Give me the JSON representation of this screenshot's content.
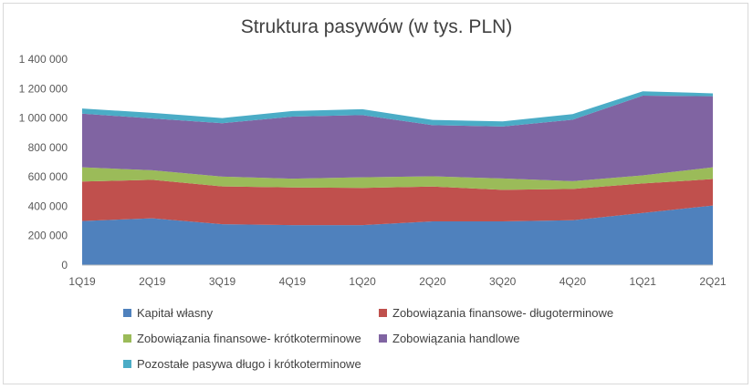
{
  "chart_data": {
    "type": "area",
    "stacked": true,
    "title": "Struktura pasywów (w tys. PLN)",
    "xlabel": "",
    "ylabel": "",
    "categories": [
      "1Q19",
      "2Q19",
      "3Q19",
      "4Q19",
      "1Q20",
      "2Q20",
      "3Q20",
      "4Q20",
      "1Q21",
      "2Q21"
    ],
    "ylim": [
      0,
      1400000
    ],
    "yticks": [
      0,
      200000,
      400000,
      600000,
      800000,
      1000000,
      1200000,
      1400000
    ],
    "ytick_labels": [
      "0",
      "200 000",
      "400 000",
      "600 000",
      "800 000",
      "1 000 000",
      "1 200 000",
      "1 400 000"
    ],
    "grid": false,
    "legend_position": "bottom",
    "series": [
      {
        "name": "Kapitał własny",
        "color": "#4f81bd",
        "values": [
          300000,
          318000,
          278000,
          272000,
          272000,
          297000,
          297000,
          305000,
          355000,
          405000
        ]
      },
      {
        "name": "Zobowiązania finansowe- długoterminowe",
        "color": "#c0504d",
        "values": [
          268000,
          262000,
          257000,
          256000,
          253000,
          237000,
          215000,
          213000,
          200000,
          180000
        ]
      },
      {
        "name": "Zobowiązania finansowe- krótkoterminowe",
        "color": "#9bbb59",
        "values": [
          97000,
          65000,
          67000,
          60000,
          72000,
          70000,
          77000,
          53000,
          55000,
          80000
        ]
      },
      {
        "name": "Zobowiązania handlowe",
        "color": "#8064a2",
        "values": [
          365000,
          352000,
          363000,
          422000,
          423000,
          348000,
          353000,
          418000,
          542000,
          483000
        ]
      },
      {
        "name": "Pozostałe pasywa długo i krótkoterminowe",
        "color": "#4bacc6",
        "values": [
          35000,
          38000,
          35000,
          38000,
          40000,
          35000,
          35000,
          38000,
          30000,
          20000
        ]
      }
    ]
  }
}
